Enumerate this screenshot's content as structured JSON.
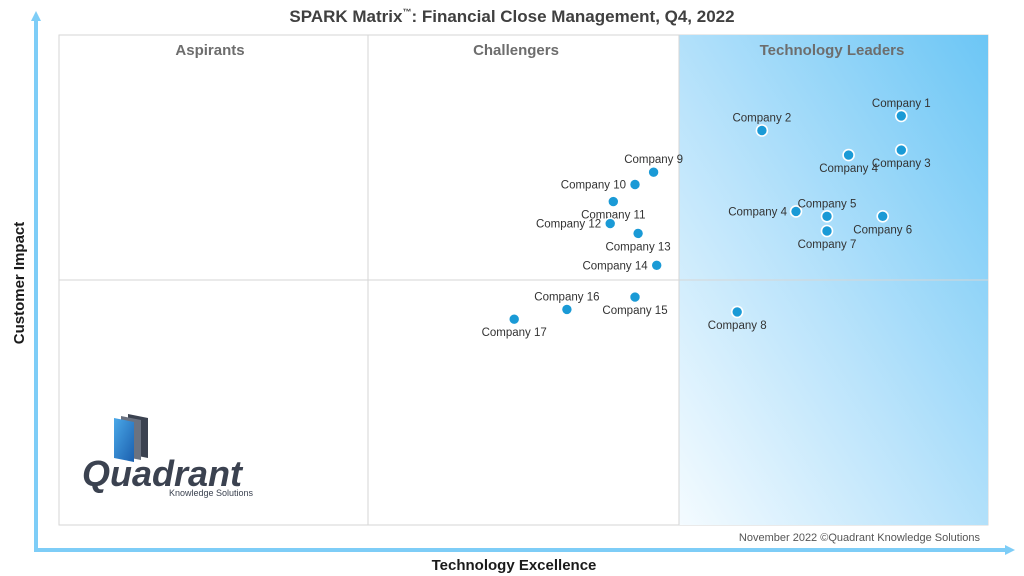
{
  "chart_data": {
    "type": "scatter",
    "title": "SPARK Matrix",
    "title_mark": "™",
    "title_rest": ": Financial Close Management, Q4, 2022",
    "xlabel": "Technology Excellence",
    "ylabel": "Customer Impact",
    "xlim": [
      0,
      3
    ],
    "ylim": [
      0,
      2
    ],
    "grid": false,
    "quadrants": [
      "Aspirants",
      "Challengers",
      "Technology Leaders"
    ],
    "highlight_color": "#7ecdf7",
    "point_color": "#1a9ad6",
    "axis_color": "#7ecdf7",
    "points": [
      {
        "label": "Company 1",
        "x": 2.72,
        "y": 1.67,
        "label_pos": "above"
      },
      {
        "label": "Company 2",
        "x": 2.27,
        "y": 1.61,
        "label_pos": "above"
      },
      {
        "label": "Company 3",
        "x": 2.72,
        "y": 1.53,
        "label_pos": "below"
      },
      {
        "label": "Company 4",
        "x": 2.55,
        "y": 1.51,
        "label_pos": "below"
      },
      {
        "label": "Company 4",
        "x": 2.38,
        "y": 1.28,
        "label_pos": "left"
      },
      {
        "label": "Company 5",
        "x": 2.48,
        "y": 1.26,
        "label_pos": "above"
      },
      {
        "label": "Company 6",
        "x": 2.66,
        "y": 1.26,
        "label_pos": "below"
      },
      {
        "label": "Company 7",
        "x": 2.48,
        "y": 1.2,
        "label_pos": "below"
      },
      {
        "label": "Company 8",
        "x": 2.19,
        "y": 0.87,
        "label_pos": "below"
      },
      {
        "label": "Company 9",
        "x": 1.92,
        "y": 1.44,
        "label_pos": "above"
      },
      {
        "label": "Company 10",
        "x": 1.86,
        "y": 1.39,
        "label_pos": "left"
      },
      {
        "label": "Company 11",
        "x": 1.79,
        "y": 1.32,
        "label_pos": "below"
      },
      {
        "label": "Company 12",
        "x": 1.78,
        "y": 1.23,
        "label_pos": "left"
      },
      {
        "label": "Company 13",
        "x": 1.87,
        "y": 1.19,
        "label_pos": "below"
      },
      {
        "label": "Company 14",
        "x": 1.93,
        "y": 1.06,
        "label_pos": "left"
      },
      {
        "label": "Company 15",
        "x": 1.86,
        "y": 0.93,
        "label_pos": "below"
      },
      {
        "label": "Company 16",
        "x": 1.64,
        "y": 0.88,
        "label_pos": "above"
      },
      {
        "label": "Company 17",
        "x": 1.47,
        "y": 0.84,
        "label_pos": "below"
      }
    ]
  },
  "footnote": "November 2022 ©Quadrant Knowledge Solutions",
  "logo": {
    "name": "Quadrant",
    "tagline": "Knowledge Solutions"
  }
}
